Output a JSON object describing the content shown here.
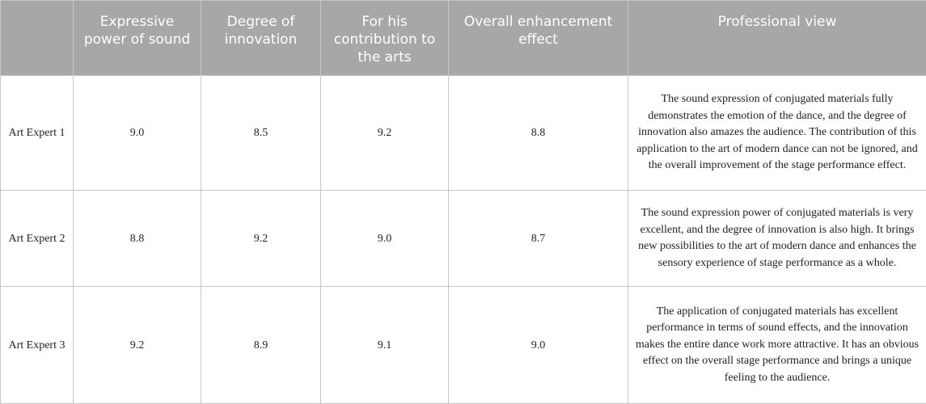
{
  "table": {
    "headers": [
      "",
      "Expressive power of sound",
      "Degree of innovation",
      "For his contribution to the arts",
      "Overall enhancement effect",
      "Professional view"
    ],
    "rows": [
      {
        "expert": "Art Expert 1",
        "sound": "9.0",
        "innovation": "8.5",
        "contribution": "9.2",
        "enhancement": "8.8",
        "view": "The sound expression of conjugated materials fully demonstrates the emotion of the dance, and the degree of innovation also amazes the audience. The contribution of this application to the art of modern dance can not be ignored, and the overall improvement of the stage performance effect."
      },
      {
        "expert": "Art Expert 2",
        "sound": "8.8",
        "innovation": "9.2",
        "contribution": "9.0",
        "enhancement": "8.7",
        "view": "The sound expression power of conjugated materials is very excellent, and the degree of innovation is also high. It brings new possibilities to the art of modern dance and enhances the sensory experience of stage performance as a whole."
      },
      {
        "expert": "Art Expert 3",
        "sound": "9.2",
        "innovation": "8.9",
        "contribution": "9.1",
        "enhancement": "9.0",
        "view": "The application of conjugated materials has excellent performance in terms of sound effects, and the innovation makes the entire dance work more attractive. It has an obvious effect on the overall stage performance and brings a unique feeling to the audience."
      }
    ]
  }
}
